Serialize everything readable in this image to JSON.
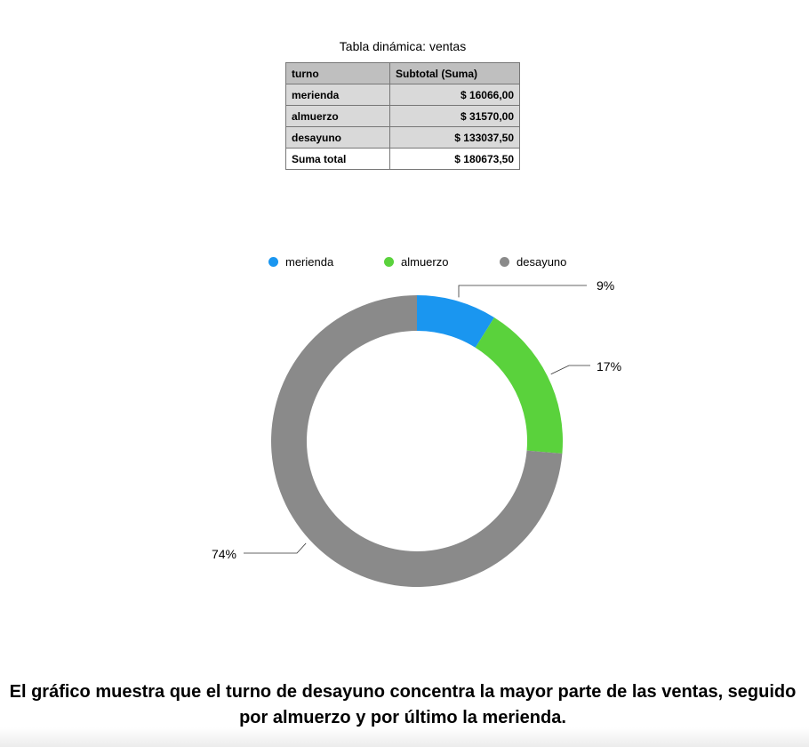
{
  "pivot_table": {
    "title": "Tabla dinámica: ventas",
    "headers": [
      "turno",
      "Subtotal (Suma)"
    ],
    "rows": [
      [
        "merienda",
        "$ 16066,00"
      ],
      [
        "almuerzo",
        "$ 31570,00"
      ],
      [
        "desayuno",
        "$ 133037,50"
      ]
    ],
    "total": [
      "Suma total",
      "$ 180673,50"
    ]
  },
  "chart_data": {
    "type": "pie",
    "style": "donut",
    "categories": [
      "merienda",
      "almuerzo",
      "desayuno"
    ],
    "values": [
      16066.0,
      31570.0,
      133037.5
    ],
    "data_labels": [
      "9%",
      "17%",
      "74%"
    ],
    "colors": [
      "#1a96f0",
      "#5ad23c",
      "#8a8a8a"
    ],
    "legend_position": "top"
  },
  "caption": "El gráfico muestra que el turno de desayuno concentra la mayor parte de las ventas, seguido por almuerzo y por último la merienda."
}
